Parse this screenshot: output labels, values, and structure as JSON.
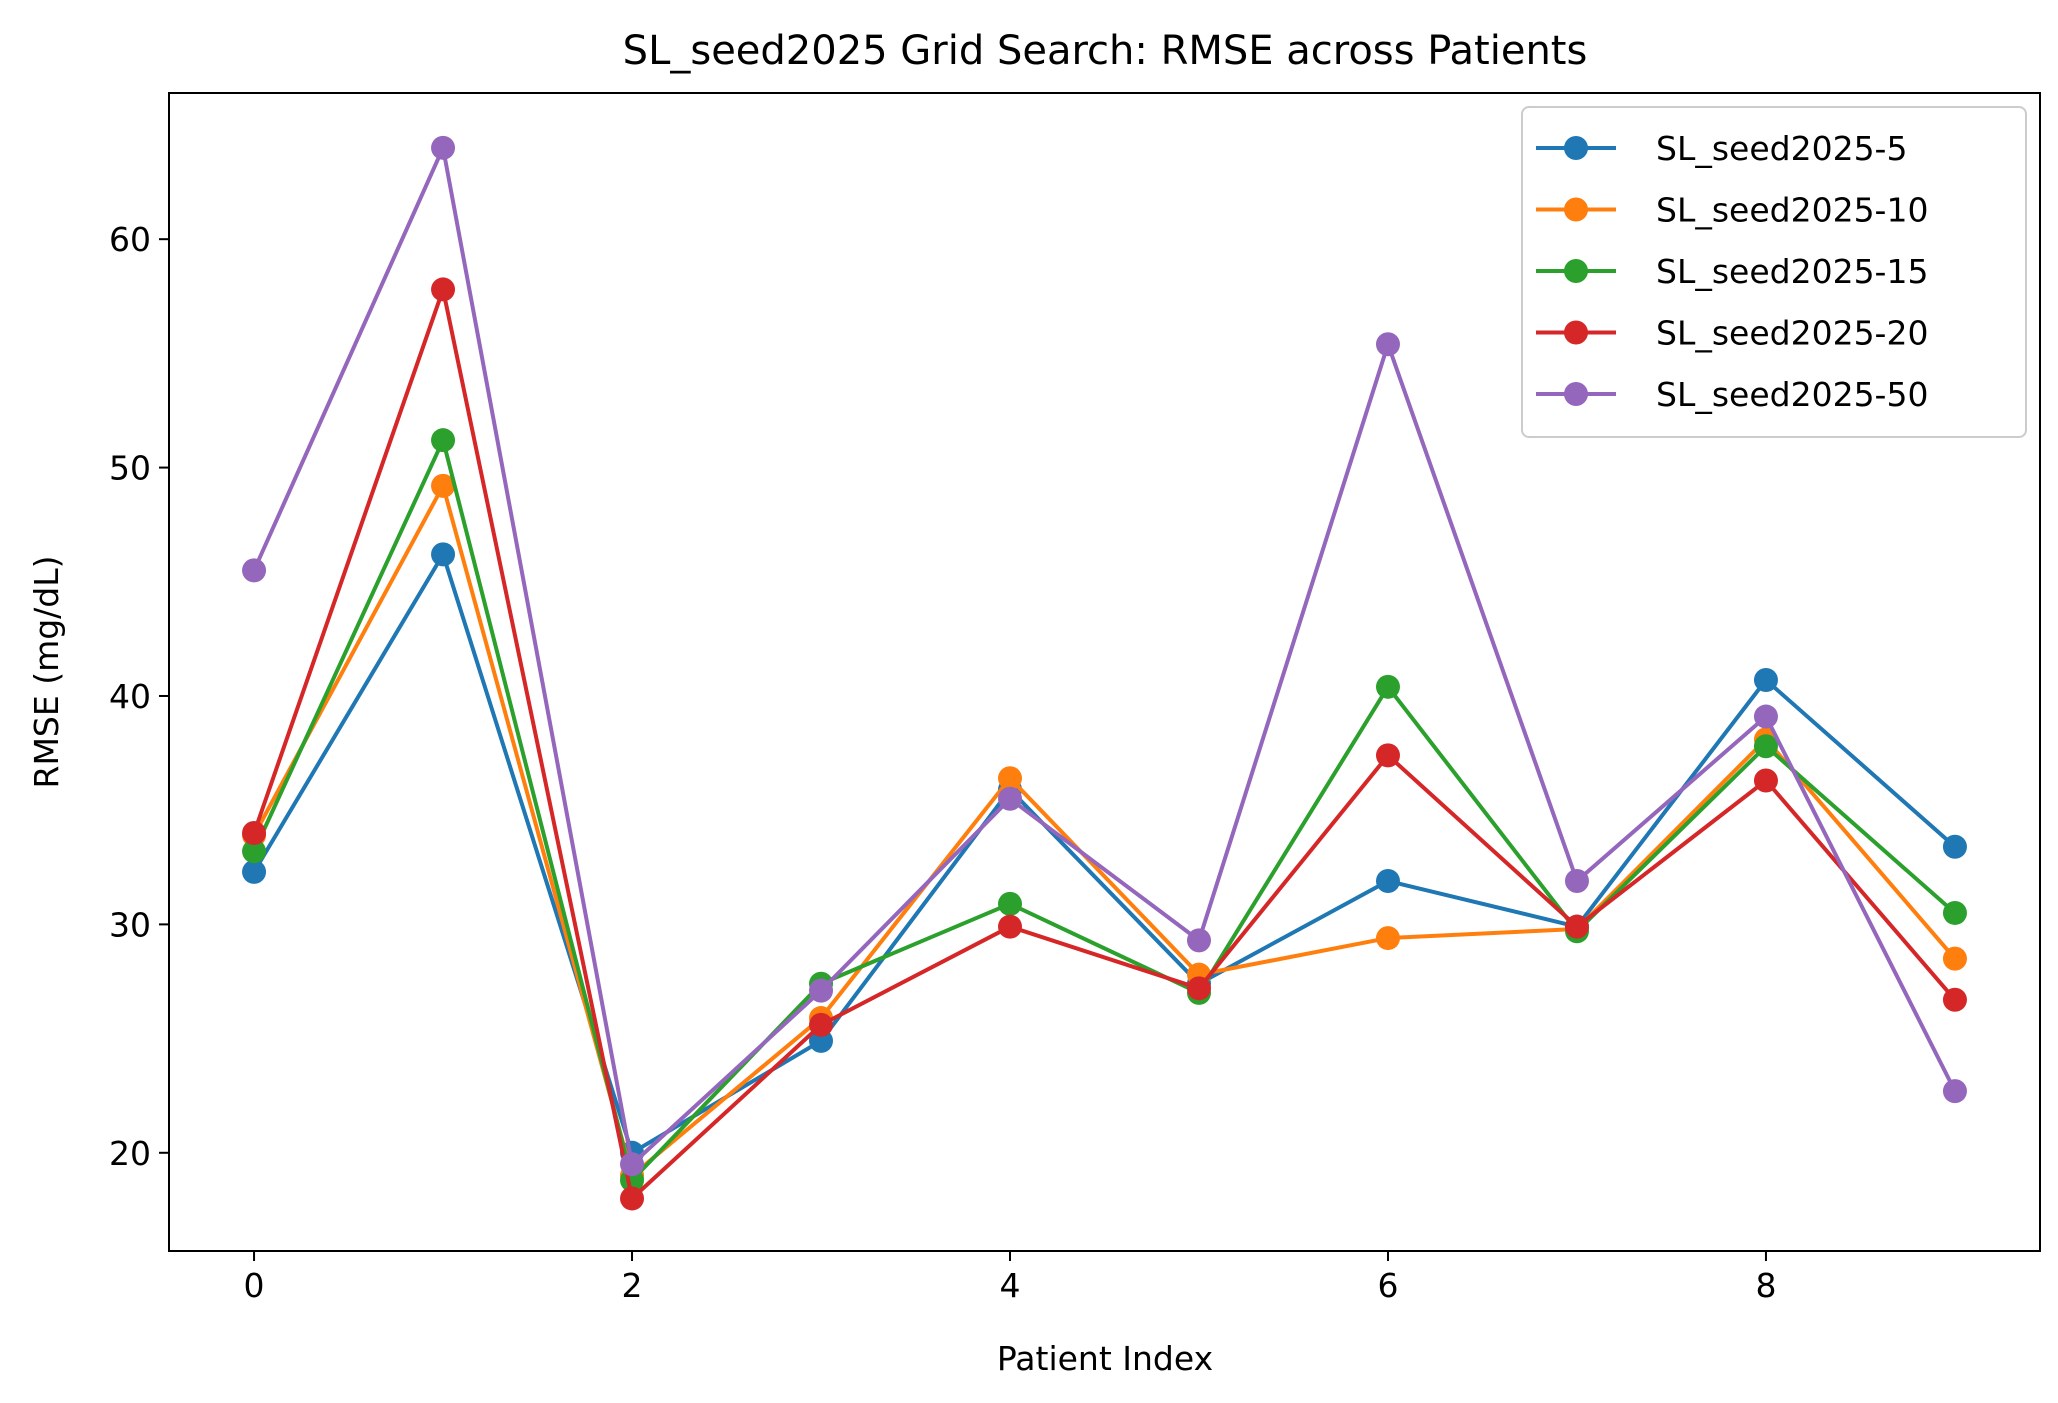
{
  "chart_data": {
    "type": "line",
    "title": "SL_seed2025 Grid Search: RMSE across Patients",
    "xlabel": "Patient Index",
    "ylabel": "RMSE (mg/dL)",
    "x": [
      0,
      1,
      2,
      3,
      4,
      5,
      6,
      7,
      8,
      9
    ],
    "xticks": [
      0,
      2,
      4,
      6,
      8
    ],
    "yticks": [
      20,
      30,
      40,
      50,
      60
    ],
    "xlim": [
      -0.45,
      9.45
    ],
    "ylim": [
      15.7,
      66.4
    ],
    "grid": false,
    "legend_position": "top-right",
    "series": [
      {
        "name": "SL_seed2025-5",
        "color": "#1f77b4",
        "values": [
          32.3,
          46.2,
          20.0,
          24.9,
          35.9,
          27.4,
          31.9,
          29.9,
          40.7,
          33.4
        ]
      },
      {
        "name": "SL_seed2025-10",
        "color": "#ff7f0e",
        "values": [
          33.9,
          49.2,
          19.0,
          25.9,
          36.4,
          27.8,
          29.4,
          29.8,
          38.1,
          28.5
        ]
      },
      {
        "name": "SL_seed2025-15",
        "color": "#2ca02c",
        "values": [
          33.2,
          51.2,
          18.8,
          27.4,
          30.9,
          27.0,
          40.4,
          29.7,
          37.8,
          30.5
        ]
      },
      {
        "name": "SL_seed2025-20",
        "color": "#d62728",
        "values": [
          34.0,
          57.8,
          18.0,
          25.6,
          29.9,
          27.2,
          37.4,
          29.9,
          36.3,
          26.7
        ]
      },
      {
        "name": "SL_seed2025-50",
        "color": "#9467bd",
        "values": [
          45.5,
          64.0,
          19.5,
          27.1,
          35.5,
          29.3,
          55.4,
          31.9,
          39.1,
          22.7
        ]
      }
    ]
  }
}
